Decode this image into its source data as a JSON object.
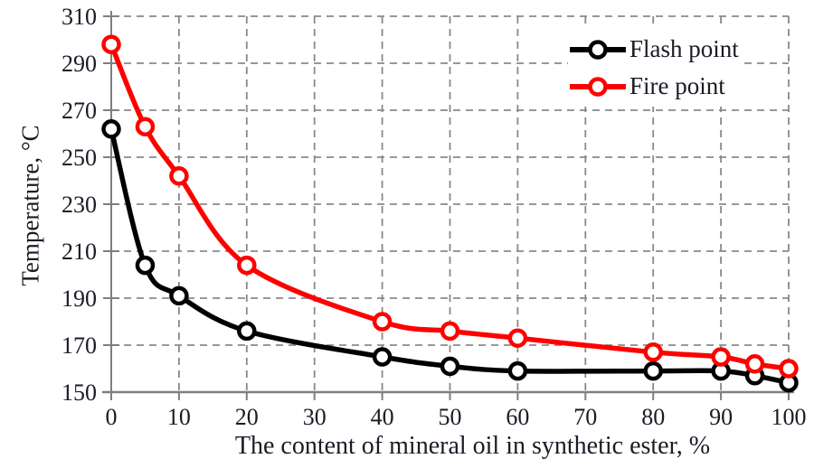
{
  "chart_data": {
    "type": "line",
    "title": "",
    "xlabel": "The content of mineral oil in synthetic ester, %",
    "ylabel": "Temperature, °C",
    "xlim": [
      0,
      100
    ],
    "ylim": [
      150,
      310
    ],
    "x_ticks": [
      0,
      10,
      20,
      30,
      40,
      50,
      60,
      70,
      80,
      90,
      100
    ],
    "y_ticks": [
      150,
      170,
      190,
      210,
      230,
      250,
      270,
      290,
      310
    ],
    "grid": "dashed gray, vertical and horizontal",
    "legend_position": "top-right inside plot",
    "line_style": "smoothed with open circle markers",
    "x": [
      0,
      5,
      10,
      20,
      40,
      50,
      60,
      80,
      90,
      95,
      100
    ],
    "series": [
      {
        "name": "Flash point",
        "color": "#000000",
        "values": [
          262,
          204,
          191,
          176,
          165,
          161,
          159,
          159,
          159,
          157,
          154
        ]
      },
      {
        "name": "Fire point",
        "color": "#fe0000",
        "values": [
          298,
          263,
          242,
          204,
          180,
          176,
          173,
          167,
          165,
          162,
          160
        ]
      }
    ]
  },
  "colors": {
    "axis": "#7f7f7f",
    "grid": "#898989",
    "text": "#1b1b26",
    "marker_fill": "#ffffff",
    "background": "#ffffff"
  }
}
